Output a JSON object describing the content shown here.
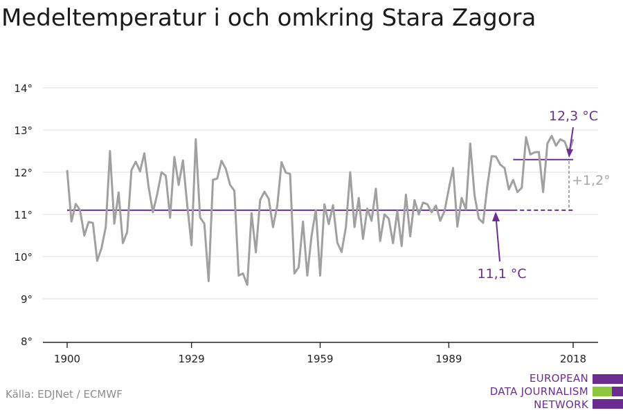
{
  "title": "Medeltemperatur i och omkring Stara Zagora",
  "source": "Källa: EDJNet / ECMWF",
  "logo": {
    "lines": [
      "EUROPEAN",
      "DATA JOURNALISM",
      "NETWORK"
    ],
    "colors": [
      "#6b2d8f",
      "#8dc63f",
      "#6b2d8f"
    ]
  },
  "colors": {
    "series": "#a0a0a0",
    "average": "#6b2d8f",
    "difference": "#a6a6a6"
  },
  "chart_data": {
    "type": "line",
    "title": "Medeltemperatur i och omkring Stara Zagora",
    "xlabel": "",
    "ylabel": "",
    "xlim": [
      1900,
      2018
    ],
    "ylim": [
      8,
      14
    ],
    "xticks": [
      1900,
      1929,
      1959,
      1989,
      2018
    ],
    "yticks": [
      8,
      9,
      10,
      11,
      12,
      13,
      14
    ],
    "ytick_suffix": "°",
    "grid": true,
    "series": [
      {
        "x": [
          1900,
          1901,
          1902,
          1903,
          1904,
          1905,
          1906,
          1907,
          1908,
          1909,
          1910,
          1911,
          1912,
          1913,
          1914,
          1915,
          1916,
          1917,
          1918,
          1919,
          1920,
          1921,
          1922,
          1923,
          1924,
          1925,
          1926,
          1927,
          1928,
          1929,
          1930,
          1931,
          1932,
          1933,
          1934,
          1935,
          1936,
          1937,
          1938,
          1939,
          1940,
          1941,
          1942,
          1943,
          1944,
          1945,
          1946,
          1947,
          1948,
          1949,
          1950,
          1951,
          1952,
          1953,
          1954,
          1955,
          1956,
          1957,
          1958,
          1959,
          1960,
          1961,
          1962,
          1963,
          1964,
          1965,
          1966,
          1967,
          1968,
          1969,
          1970,
          1971,
          1972,
          1973,
          1974,
          1975,
          1976,
          1977,
          1978,
          1979,
          1980,
          1981,
          1982,
          1983,
          1984,
          1985,
          1986,
          1987,
          1988,
          1989,
          1990,
          1991,
          1992,
          1993,
          1994,
          1995,
          1996,
          1997,
          1998,
          1999,
          2000,
          2001,
          2002,
          2003,
          2004,
          2005,
          2006,
          2007,
          2008,
          2009,
          2010,
          2011,
          2012,
          2013,
          2014,
          2015,
          2016,
          2017,
          2018
        ],
        "values": [
          12.05,
          10.83,
          11.25,
          11.1,
          10.5,
          10.82,
          10.8,
          9.9,
          10.2,
          10.7,
          12.5,
          10.78,
          11.52,
          10.32,
          10.58,
          12.05,
          12.25,
          12.02,
          12.45,
          11.65,
          11.05,
          11.48,
          12.0,
          11.92,
          10.92,
          12.36,
          11.7,
          12.28,
          11.22,
          10.27,
          12.78,
          10.93,
          10.78,
          9.42,
          11.82,
          11.85,
          12.27,
          12.08,
          11.7,
          11.56,
          9.55,
          9.6,
          9.33,
          11.03,
          10.1,
          11.34,
          11.54,
          11.37,
          10.7,
          11.21,
          12.24,
          11.99,
          11.96,
          9.6,
          9.75,
          10.83,
          9.55,
          10.5,
          11.1,
          9.55,
          11.24,
          10.77,
          11.22,
          10.33,
          10.11,
          10.7,
          12.0,
          10.7,
          11.39,
          10.42,
          11.14,
          10.85,
          11.61,
          10.37,
          11.0,
          10.9,
          10.32,
          11.08,
          10.25,
          11.47,
          10.48,
          11.34,
          11.0,
          11.28,
          11.24,
          11.05,
          11.21,
          10.85,
          11.08,
          11.6,
          12.1,
          10.71,
          11.39,
          11.12,
          12.68,
          11.46,
          10.9,
          10.8,
          11.68,
          12.38,
          12.37,
          12.18,
          12.1,
          11.59,
          11.82,
          11.53,
          11.63,
          12.83,
          12.42,
          12.47,
          12.48,
          11.53,
          12.68,
          12.86,
          12.63,
          12.78,
          12.73,
          12.47,
          12.78
        ]
      }
    ],
    "reference_lines": [
      {
        "from": 1900,
        "to": 2004,
        "value": 11.1,
        "style": "solid"
      },
      {
        "from": 2004,
        "to": 2018,
        "value": 11.1,
        "style": "dashed"
      },
      {
        "from": 2004,
        "to": 2018,
        "value": 12.3,
        "style": "solid"
      }
    ],
    "annotations": {
      "recent_avg": "12,3 °C",
      "baseline_avg": "11,1 °C",
      "difference": "+1,2°"
    }
  }
}
